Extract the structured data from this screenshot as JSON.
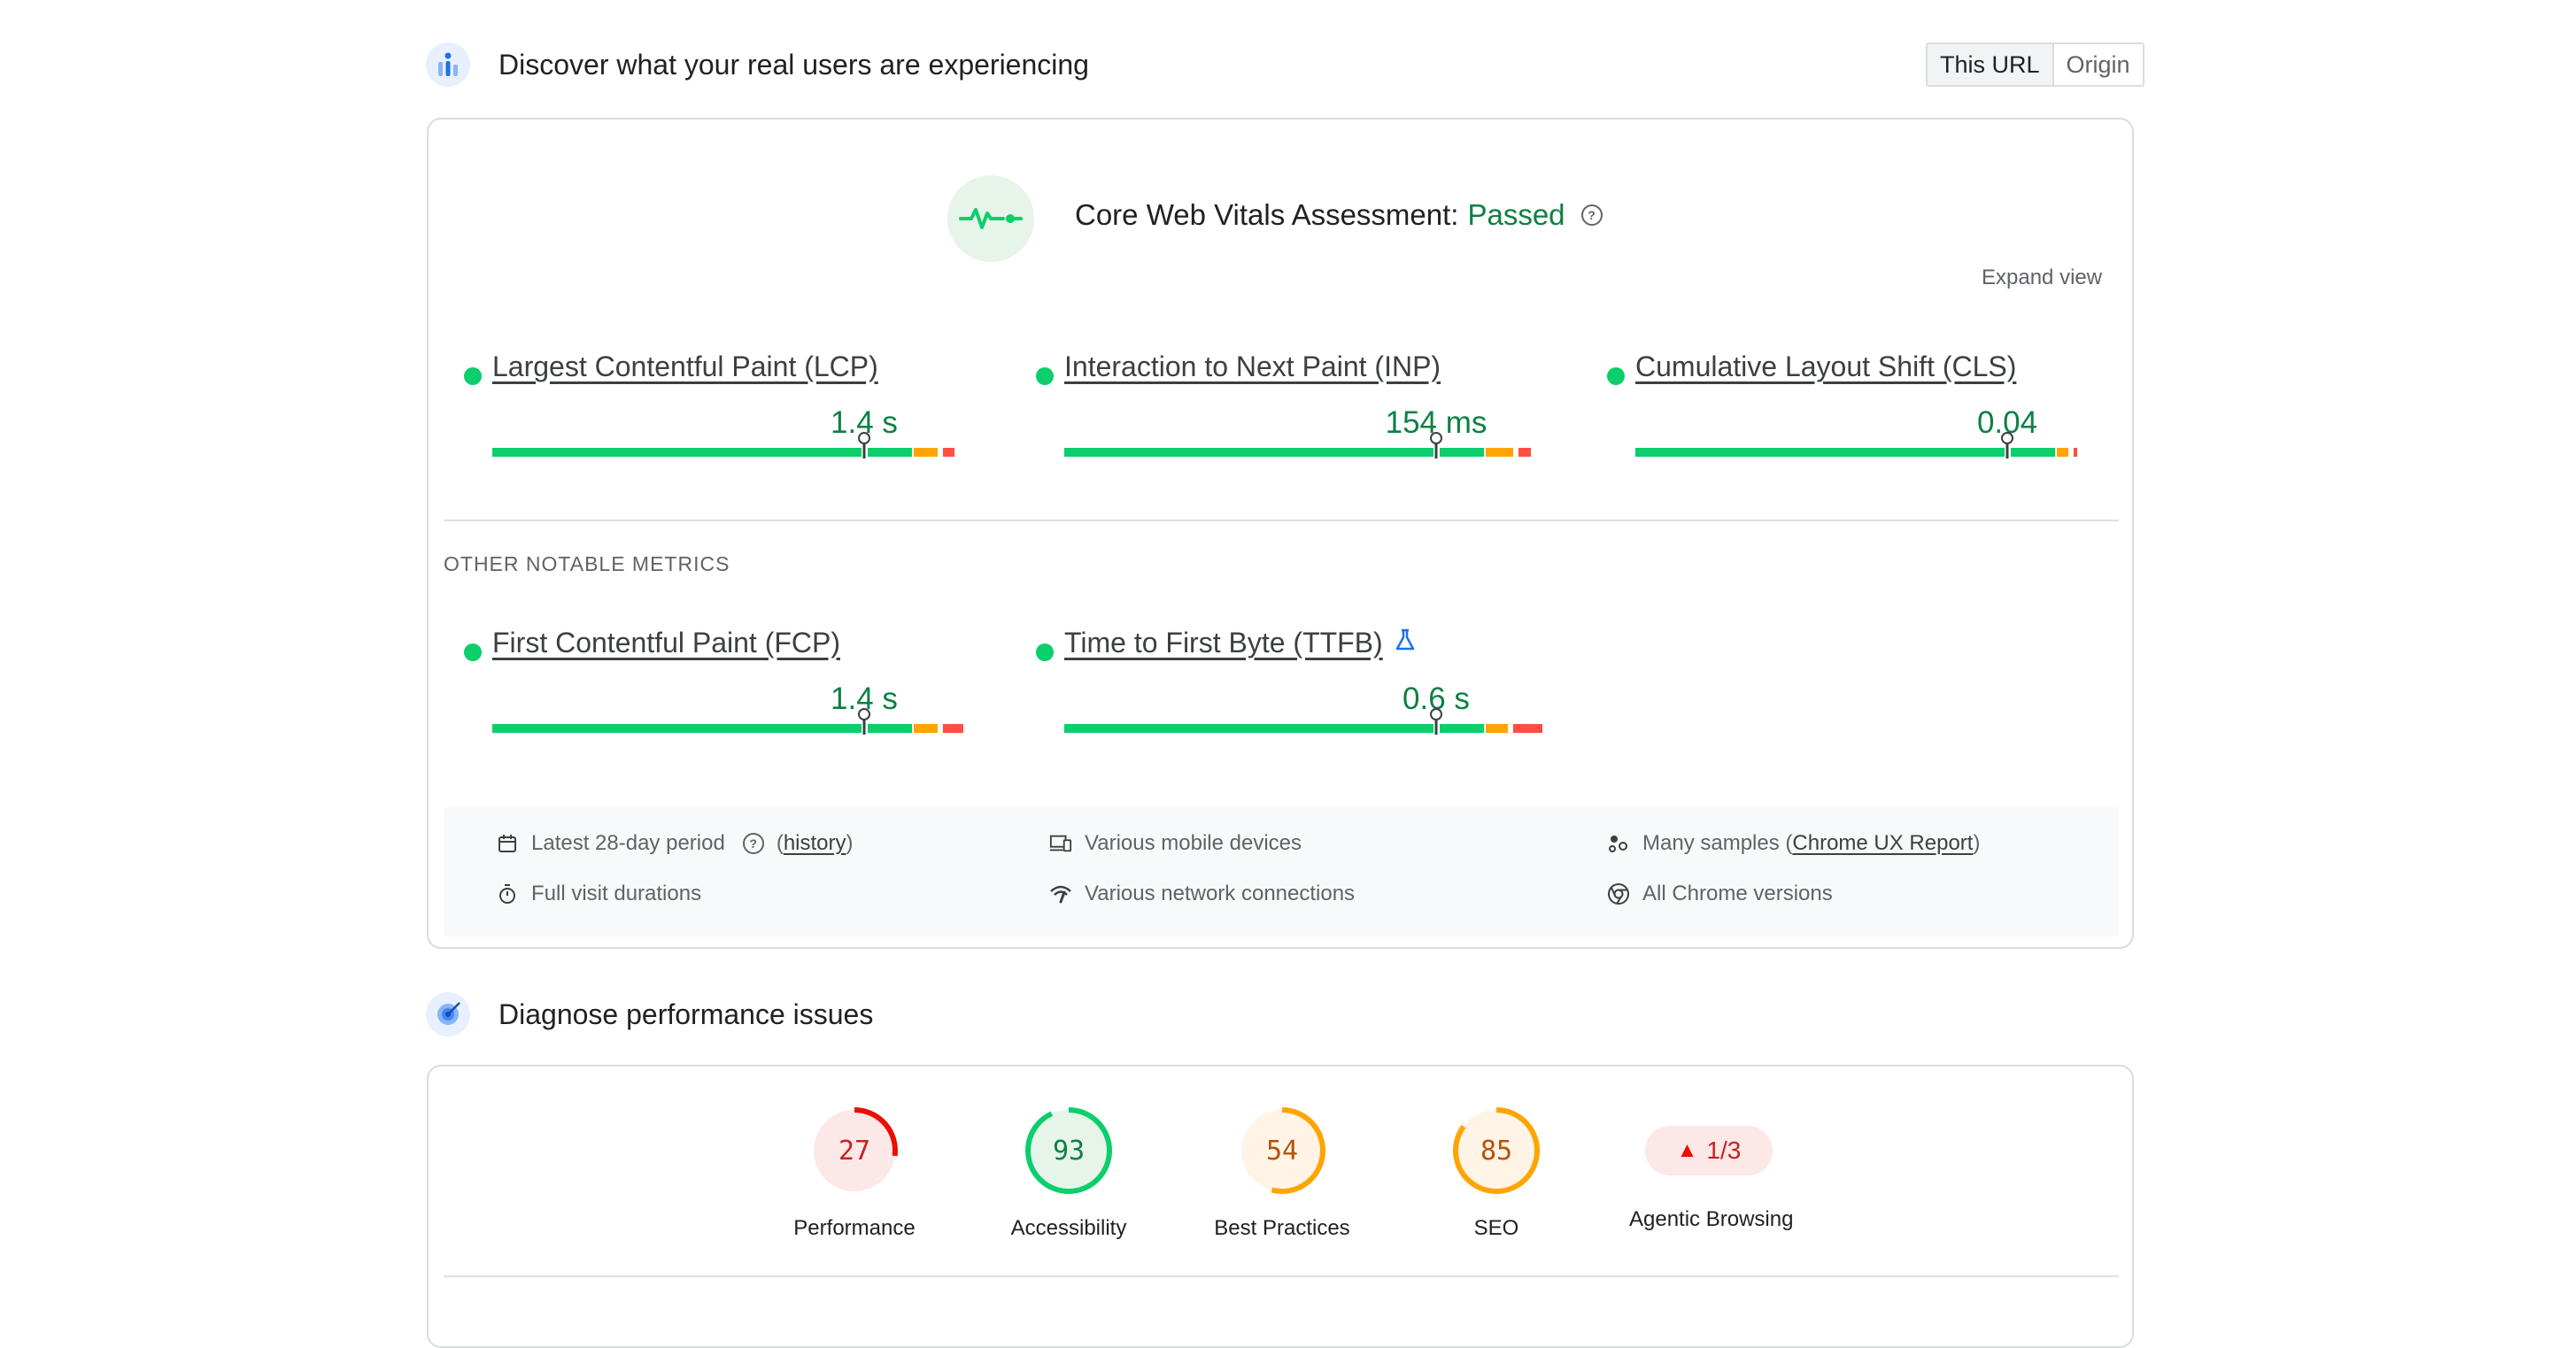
{
  "field_section": {
    "title": "Discover what your real users are experiencing",
    "toggle": {
      "this_url": "This URL",
      "origin": "Origin"
    }
  },
  "assessment": {
    "label": "Core Web Vitals Assessment:",
    "status": "Passed",
    "expand": "Expand view"
  },
  "core_metrics": [
    {
      "name": "Largest Contentful Paint (LCP)",
      "value": "1.4 s",
      "good": 0.75,
      "ni": 0.12,
      "poor": 0.04,
      "marker": 0.75
    },
    {
      "name": "Interaction to Next Paint (INP)",
      "value": "154 ms",
      "good": 0.75,
      "ni": 0.14,
      "poor": 0.04,
      "marker": 0.75
    },
    {
      "name": "Cumulative Layout Shift (CLS)",
      "value": "0.04",
      "good": 0.75,
      "ni": 0.06,
      "poor": 0.01,
      "marker": 0.75
    }
  ],
  "other_label": "OTHER NOTABLE METRICS",
  "other_metrics": [
    {
      "name": "First Contentful Paint (FCP)",
      "value": "1.4 s",
      "good": 0.75,
      "ni": 0.12,
      "poor": 0.07,
      "marker": 0.75
    },
    {
      "name": "Time to First Byte (TTFB)",
      "value": "0.6 s",
      "good": 0.75,
      "ni": 0.11,
      "poor": 0.1,
      "marker": 0.75
    }
  ],
  "info": {
    "period": "Latest 28-day period",
    "history": "history",
    "durations": "Full visit durations",
    "devices": "Various mobile devices",
    "network": "Various network connections",
    "samples_prefix": "Many samples (",
    "samples_link": "Chrome UX Report",
    "samples_suffix": ")",
    "versions": "All Chrome versions"
  },
  "lab_section": {
    "title": "Diagnose performance issues"
  },
  "scores": [
    {
      "label": "Performance",
      "score": 27,
      "color": "#eb0f00",
      "bg": "#fce8e6",
      "text": "#c5221f"
    },
    {
      "label": "Accessibility",
      "score": 93,
      "color": "#0cce6b",
      "bg": "#e6f4ea",
      "text": "#0d8043"
    },
    {
      "label": "Best Practices",
      "score": 54,
      "color": "#ffa400",
      "bg": "#fff4e5",
      "text": "#b45309"
    },
    {
      "label": "SEO",
      "score": 85,
      "color": "#ffa400",
      "bg": "#fff4e5",
      "text": "#b45309"
    }
  ],
  "agentic": {
    "label": "Agentic Browsing",
    "value": "1/3"
  },
  "colors": {
    "good": "#0cce6b",
    "ni": "#ffa400",
    "poor": "#ff4e42"
  }
}
